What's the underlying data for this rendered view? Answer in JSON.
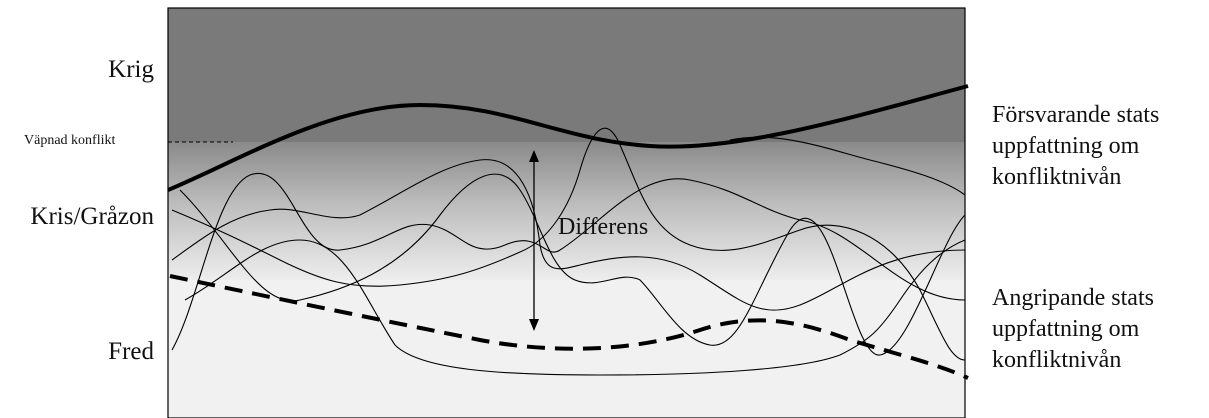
{
  "levels": {
    "war": "Krig",
    "armed_conflict": "Väpnad konflikt",
    "crisis": "Kris/Gråzon",
    "peace": "Fred"
  },
  "center_label": "Differens",
  "defender": {
    "line1": "Försvarande stats",
    "line2": "uppfattning om",
    "line3": "konfliktnivån"
  },
  "attacker": {
    "line1": "Angripande stats",
    "line2": "uppfattning om",
    "line3": "konfliktnivån"
  },
  "colors": {
    "war_zone": "#7a7a7a",
    "crisis_zone_top": "#8e8e8e",
    "crisis_zone_bottom": "#f2f2f2",
    "peace_zone": "#f1f1f1",
    "line": "#000000"
  }
}
